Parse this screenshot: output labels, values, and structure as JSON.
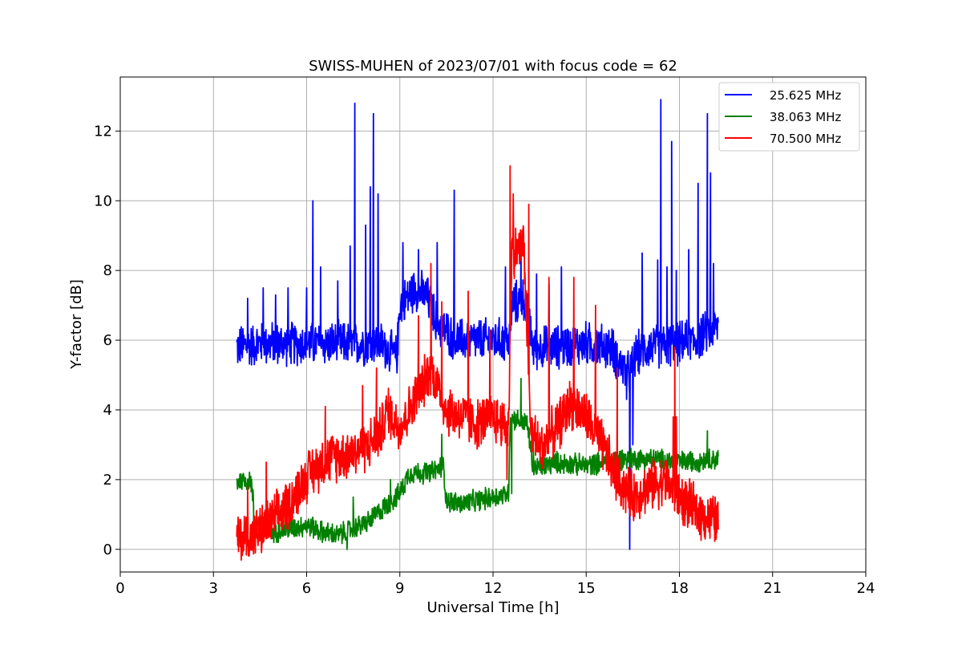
{
  "chart_data": {
    "type": "line",
    "title": "SWISS-MUHEN of 2023/07/01 with focus code = 62",
    "xlabel": "Universal Time [h]",
    "ylabel": "Y-factor [dB]",
    "xlim": [
      0,
      24
    ],
    "ylim": [
      -0.65,
      13.55
    ],
    "xticks": [
      0,
      3,
      6,
      9,
      12,
      15,
      18,
      21,
      24
    ],
    "xtick_labels": [
      "0",
      "3",
      "6",
      "9",
      "12",
      "15",
      "18",
      "21",
      "24"
    ],
    "yticks": [
      0,
      2,
      4,
      6,
      8,
      10,
      12
    ],
    "ytick_labels": [
      "0",
      "2",
      "4",
      "6",
      "8",
      "10",
      "12"
    ],
    "grid": true,
    "legend_position": "top-right",
    "series": [
      {
        "name": "25.625 MHz",
        "color": "#0000ff",
        "base": [
          [
            3.75,
            5.8
          ],
          [
            4.5,
            5.9
          ],
          [
            5.5,
            5.9
          ],
          [
            6.5,
            5.9
          ],
          [
            7.5,
            5.9
          ],
          [
            8.4,
            5.9
          ],
          [
            8.9,
            5.5
          ],
          [
            9.0,
            7.0
          ],
          [
            9.5,
            7.5
          ],
          [
            9.9,
            7.2
          ],
          [
            10.2,
            6.5
          ],
          [
            10.8,
            6.0
          ],
          [
            11.5,
            6.0
          ],
          [
            12.3,
            6.0
          ],
          [
            12.55,
            6.0
          ],
          [
            12.6,
            7.0
          ],
          [
            13.0,
            7.2
          ],
          [
            13.3,
            5.8
          ],
          [
            14.0,
            5.8
          ],
          [
            15.0,
            5.9
          ],
          [
            15.8,
            5.8
          ],
          [
            16.1,
            5.3
          ],
          [
            16.4,
            5.0
          ],
          [
            16.6,
            5.6
          ],
          [
            17.0,
            5.8
          ],
          [
            18.0,
            5.9
          ],
          [
            18.5,
            6.0
          ],
          [
            19.25,
            6.4
          ]
        ],
        "noise": 0.6,
        "spikes": [
          [
            4.1,
            7.2
          ],
          [
            4.6,
            7.5
          ],
          [
            5.0,
            7.3
          ],
          [
            5.4,
            7.5
          ],
          [
            6.0,
            7.5
          ],
          [
            6.2,
            10.0
          ],
          [
            6.45,
            8.1
          ],
          [
            7.0,
            7.7
          ],
          [
            7.4,
            8.7
          ],
          [
            7.55,
            12.8
          ],
          [
            7.9,
            9.3
          ],
          [
            8.05,
            10.4
          ],
          [
            8.15,
            12.5
          ],
          [
            8.3,
            10.2
          ],
          [
            9.1,
            8.8
          ],
          [
            9.6,
            8.6
          ],
          [
            10.2,
            8.8
          ],
          [
            10.75,
            10.3
          ],
          [
            12.4,
            8.1
          ],
          [
            12.9,
            8.5
          ],
          [
            13.4,
            7.9
          ],
          [
            13.8,
            7.6
          ],
          [
            14.2,
            8.1
          ],
          [
            16.3,
            9.1
          ],
          [
            16.8,
            8.5
          ],
          [
            17.3,
            8.3
          ],
          [
            17.4,
            12.9
          ],
          [
            17.6,
            8.1
          ],
          [
            17.75,
            11.7
          ],
          [
            17.9,
            8.0
          ],
          [
            18.3,
            8.6
          ],
          [
            18.6,
            10.5
          ],
          [
            18.9,
            12.5
          ],
          [
            19.0,
            10.8
          ],
          [
            19.1,
            8.2
          ]
        ],
        "dips": [
          [
            16.4,
            0.0
          ],
          [
            16.5,
            3.0
          ],
          [
            16.3,
            4.3
          ]
        ]
      },
      {
        "name": "38.063 MHz",
        "color": "#008000",
        "base": [
          [
            3.75,
            1.95
          ],
          [
            4.2,
            2.0
          ],
          [
            4.35,
            0.8
          ],
          [
            5.0,
            0.5
          ],
          [
            5.5,
            0.6
          ],
          [
            6.0,
            0.7
          ],
          [
            6.5,
            0.5
          ],
          [
            7.0,
            0.4
          ],
          [
            7.5,
            0.6
          ],
          [
            8.0,
            0.8
          ],
          [
            8.5,
            1.2
          ],
          [
            9.0,
            1.6
          ],
          [
            9.3,
            2.2
          ],
          [
            10.0,
            2.2
          ],
          [
            10.4,
            2.4
          ],
          [
            10.5,
            1.4
          ],
          [
            11.0,
            1.3
          ],
          [
            11.5,
            1.4
          ],
          [
            12.5,
            1.6
          ],
          [
            12.55,
            3.8
          ],
          [
            13.1,
            3.6
          ],
          [
            13.3,
            2.3
          ],
          [
            14.0,
            2.5
          ],
          [
            15.0,
            2.4
          ],
          [
            16.0,
            2.6
          ],
          [
            17.0,
            2.6
          ],
          [
            18.0,
            2.5
          ],
          [
            19.25,
            2.6
          ]
        ],
        "noise": 0.3,
        "spikes": [
          [
            4.7,
            1.3
          ],
          [
            5.1,
            1.2
          ],
          [
            7.5,
            1.5
          ],
          [
            8.7,
            2.0
          ],
          [
            10.35,
            3.3
          ],
          [
            12.9,
            4.9
          ],
          [
            13.3,
            2.9
          ],
          [
            18.9,
            3.4
          ]
        ],
        "dips": [
          [
            4.3,
            0.2
          ],
          [
            7.3,
            0.0
          ],
          [
            12.6,
            1.6
          ]
        ]
      },
      {
        "name": "70.500 MHz",
        "color": "#ff0000",
        "base": [
          [
            3.75,
            0.3
          ],
          [
            4.5,
            0.5
          ],
          [
            5.0,
            0.9
          ],
          [
            5.5,
            1.4
          ],
          [
            6.0,
            2.1
          ],
          [
            6.5,
            2.5
          ],
          [
            7.0,
            2.7
          ],
          [
            7.5,
            2.8
          ],
          [
            8.0,
            3.0
          ],
          [
            8.4,
            3.4
          ],
          [
            8.6,
            4.0
          ],
          [
            9.0,
            3.5
          ],
          [
            9.5,
            4.3
          ],
          [
            10.0,
            5.2
          ],
          [
            10.5,
            4.0
          ],
          [
            11.0,
            3.8
          ],
          [
            11.5,
            3.6
          ],
          [
            12.0,
            3.8
          ],
          [
            12.5,
            3.5
          ],
          [
            12.6,
            8.5
          ],
          [
            13.0,
            8.7
          ],
          [
            13.2,
            3.5
          ],
          [
            13.5,
            2.9
          ],
          [
            14.0,
            3.4
          ],
          [
            14.5,
            4.2
          ],
          [
            15.0,
            3.8
          ],
          [
            15.5,
            3.0
          ],
          [
            16.0,
            2.0
          ],
          [
            16.5,
            1.5
          ],
          [
            17.0,
            1.8
          ],
          [
            17.5,
            2.0
          ],
          [
            18.0,
            1.5
          ],
          [
            18.5,
            1.1
          ],
          [
            19.25,
            0.8
          ]
        ],
        "noise": 0.7,
        "spikes": [
          [
            4.1,
            1.8
          ],
          [
            4.7,
            2.5
          ],
          [
            6.6,
            4.1
          ],
          [
            7.8,
            4.7
          ],
          [
            8.25,
            5.2
          ],
          [
            9.6,
            6.7
          ],
          [
            10.0,
            8.2
          ],
          [
            10.35,
            7.1
          ],
          [
            11.2,
            7.4
          ],
          [
            11.9,
            6.3
          ],
          [
            12.55,
            11.0
          ],
          [
            12.65,
            10.2
          ],
          [
            13.15,
            9.9
          ],
          [
            13.8,
            7.8
          ],
          [
            14.6,
            7.8
          ],
          [
            15.3,
            7.0
          ],
          [
            16.0,
            5.2
          ],
          [
            17.8,
            3.8
          ],
          [
            17.85,
            5.8
          ],
          [
            17.9,
            3.8
          ]
        ],
        "dips": [
          [
            4.2,
            0.0
          ],
          [
            12.45,
            2.0
          ],
          [
            13.25,
            2.8
          ]
        ]
      }
    ]
  }
}
